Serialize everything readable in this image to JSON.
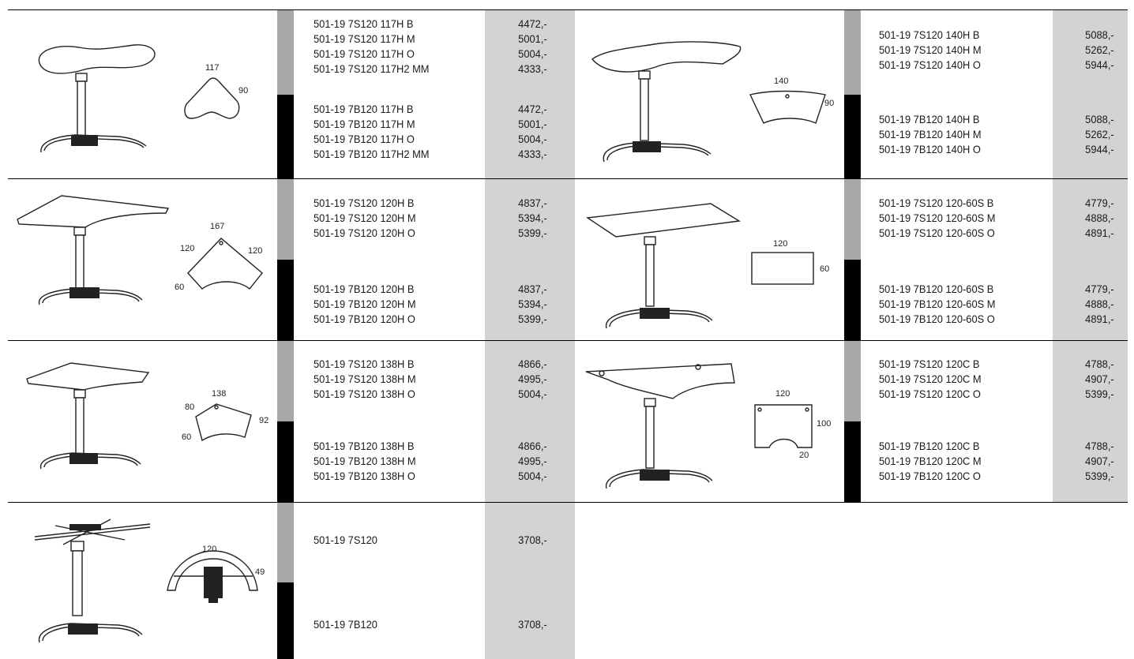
{
  "rows": [
    {
      "left": {
        "dims": [
          "117",
          "90"
        ],
        "groupA": {
          "codes": [
            "501-19 7S120 117H B",
            "501-19 7S120 117H M",
            "501-19 7S120 117H O",
            "501-19 7S120 117H2 MM"
          ],
          "prices": [
            "4472,-",
            "5001,-",
            "5004,-",
            "4333,-"
          ]
        },
        "groupB": {
          "codes": [
            "501-19 7B120 117H B",
            "501-19 7B120 117H M",
            "501-19 7B120 117H O",
            "501-19 7B120 117H2 MM"
          ],
          "prices": [
            "4472,-",
            "5001,-",
            "5004,-",
            "4333,-"
          ]
        }
      },
      "right": {
        "dims": [
          "140",
          "90"
        ],
        "groupA": {
          "codes": [
            "501-19 7S120 140H B",
            "501-19 7S120 140H M",
            "501-19 7S120 140H O"
          ],
          "prices": [
            "5088,-",
            "5262,-",
            "5944,-"
          ]
        },
        "groupB": {
          "codes": [
            "501-19 7B120 140H B",
            "501-19 7B120 140H M",
            "501-19 7B120 140H O"
          ],
          "prices": [
            "5088,-",
            "5262,-",
            "5944,-"
          ]
        }
      }
    },
    {
      "left": {
        "dims": [
          "167",
          "120",
          "120",
          "60"
        ],
        "groupA": {
          "codes": [
            "501-19 7S120 120H B",
            "501-19 7S120 120H M",
            "501-19 7S120 120H O"
          ],
          "prices": [
            "4837,-",
            "5394,-",
            "5399,-"
          ]
        },
        "groupB": {
          "codes": [
            "501-19 7B120 120H B",
            "501-19 7B120 120H M",
            "501-19 7B120 120H O"
          ],
          "prices": [
            "4837,-",
            "5394,-",
            "5399,-"
          ]
        }
      },
      "right": {
        "dims": [
          "120",
          "60"
        ],
        "groupA": {
          "codes": [
            "501-19 7S120 120-60S B",
            "501-19 7S120 120-60S M",
            "501-19 7S120 120-60S O"
          ],
          "prices": [
            "4779,-",
            "4888,-",
            "4891,-"
          ]
        },
        "groupB": {
          "codes": [
            "501-19 7B120 120-60S B",
            "501-19 7B120 120-60S M",
            "501-19 7B120 120-60S O"
          ],
          "prices": [
            "4779,-",
            "4888,-",
            "4891,-"
          ]
        }
      }
    },
    {
      "left": {
        "dims": [
          "138",
          "80",
          "92",
          "60"
        ],
        "groupA": {
          "codes": [
            "501-19 7S120 138H B",
            "501-19 7S120 138H M",
            "501-19 7S120 138H O"
          ],
          "prices": [
            "4866,-",
            "4995,-",
            "5004,-"
          ]
        },
        "groupB": {
          "codes": [
            "501-19 7B120 138H B",
            "501-19 7B120 138H M",
            "501-19 7B120 138H O"
          ],
          "prices": [
            "4866,-",
            "4995,-",
            "5004,-"
          ]
        }
      },
      "right": {
        "dims": [
          "120",
          "100",
          "20"
        ],
        "groupA": {
          "codes": [
            "501-19 7S120 120C B",
            "501-19 7S120 120C M",
            "501-19 7S120 120C O"
          ],
          "prices": [
            "4788,-",
            "4907,-",
            "5399,-"
          ]
        },
        "groupB": {
          "codes": [
            "501-19 7B120 120C B",
            "501-19 7B120 120C M",
            "501-19 7B120 120C O"
          ],
          "prices": [
            "4788,-",
            "4907,-",
            "5399,-"
          ]
        }
      }
    },
    {
      "left": {
        "dims": [
          "120",
          "49"
        ],
        "groupA": {
          "codes": [
            "501-19 7S120"
          ],
          "prices": [
            "3708,-"
          ]
        },
        "groupB": {
          "codes": [
            "501-19 7B120"
          ],
          "prices": [
            "3708,-"
          ]
        }
      }
    }
  ]
}
